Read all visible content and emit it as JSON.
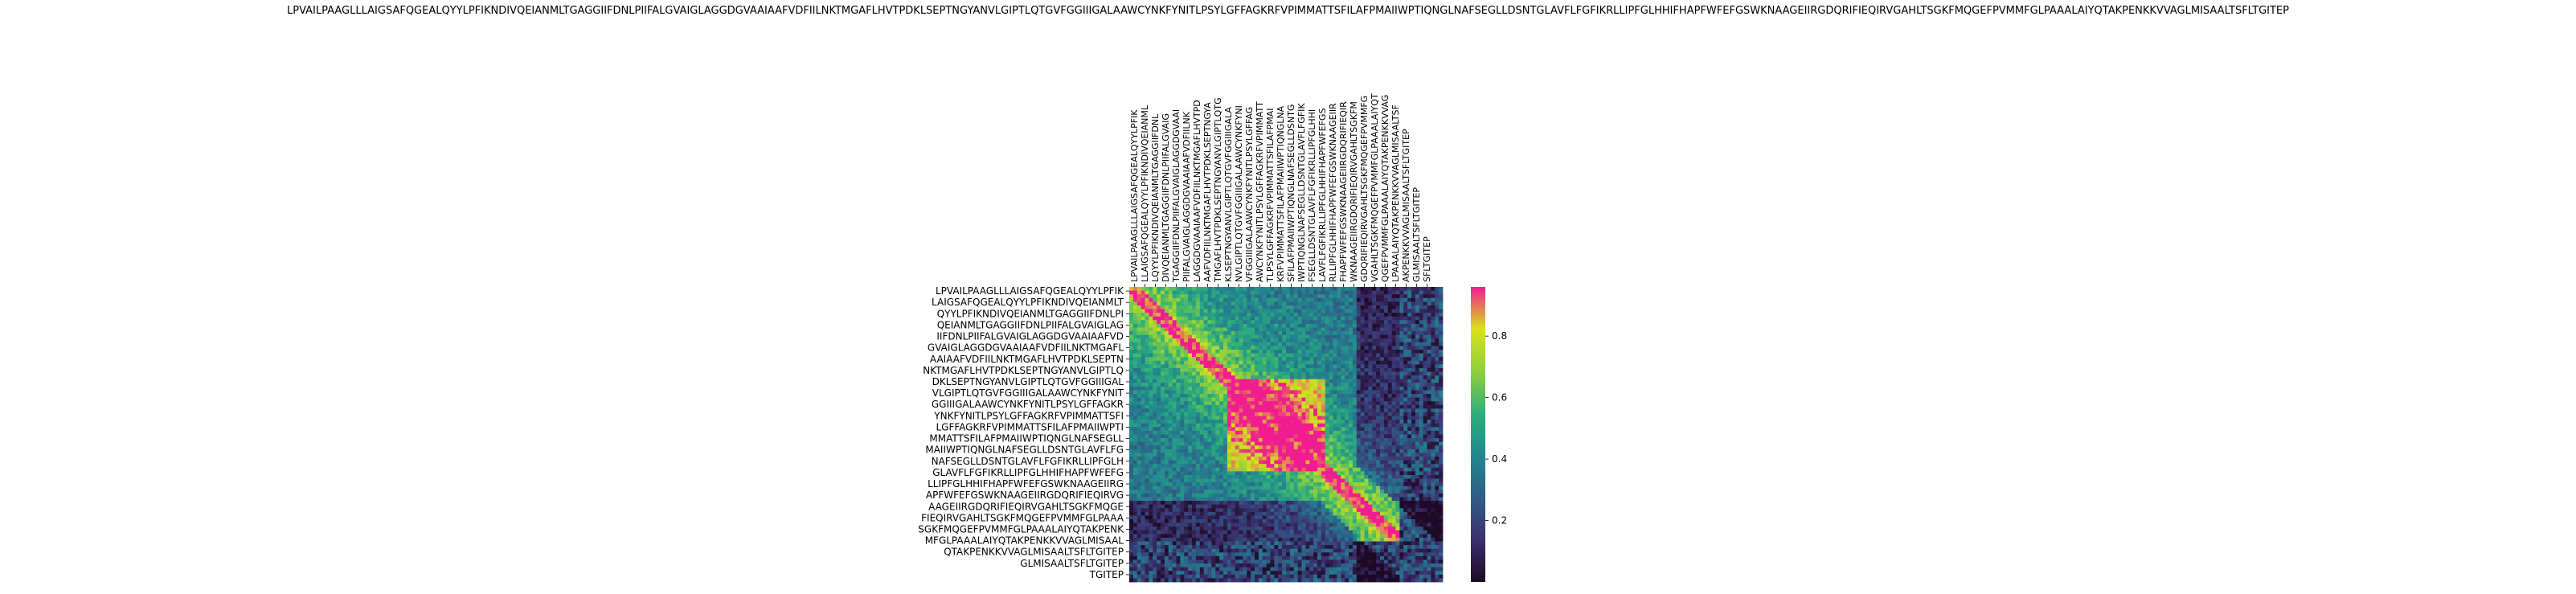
{
  "figure": {
    "title": "LPVAILPAAGLLLAIGSAFQGEALQYYLPFIKNDIVQEIANMLTGAGGIIFDNLPIIFALGVAIGLAGGDGVAAIAAFVDFIILNKTMGAFLHVTPDKLSEPTNGYANVLGIPTLQTGVFGGIIIGALAAWCYNKFYNITLPSYLGFFAGKRFVPIMMATTSFILAFPMAIIWPTIQNGLNAFSEGLLDSNTGLAVFLFGFIKRLLIPFGLHHIFHAPFWFEFGSWKNAAGEIIRGDQRIFIEQIRVGAHLTSGKFMQGEFPVMMFGLPAAALAIYQTAKPENKKVVAGLMISAALTSFLTGITEP"
  },
  "chart_data": {
    "type": "heatmap",
    "title": "LPVAILPAAGLLLAIGSAFQGEALQYYLPFIKNDIVQEIANMLTGAGGIIFDNLPIIFALGVAIGLAGGDGVAAIAAFVDFIILNKTMGAFLHVTPDKLSEPTNGYANVLGIPTLQTGVFGGIIIGALAAWCYNKFYNITLPSYLGFFAGKRFVPIMMATTSFILAFPMAIIWPTIQNGLNAFSEGLLDSNTGLAVFLFGFIKRLLIPFGLHHIFHAPFWFEFGSWKNAAGEIIRGDQRIFIEQIRVGAHLTSGKFMQGEFPVMMFGLPAAALAIYQTAKPENKKVVAGLMISAALTSFLTGITEP",
    "xlabel": "",
    "ylabel": "",
    "colorbar": {
      "ticks": [
        0.2,
        0.4,
        0.6,
        0.8
      ],
      "range": [
        0.0,
        0.96
      ],
      "colors": [
        "#1e0a26",
        "#3b2f6e",
        "#2f5e87",
        "#21878f",
        "#2faf7a",
        "#8fcf3d",
        "#d8e21e",
        "#f01c90"
      ]
    },
    "x_tick_labels": [
      "LPVAILPAAGLLLAIGSAFQGEALQYYLPFIK",
      "LLAIGSAFQGEALQYYLPFIKNDIVQEIANML",
      "LQYYLPFIKNDIVQEIANMLTGAGGIIFDNL",
      "DIVQEIANMLTGAGGIIFDNLPIIFALGVAIG",
      "TGAGGIIFDNLPIIFALGVAIGLAGGDGVAAI",
      "PIIFALGVAIGLAGGDGVAAIAAFVDFIILNK",
      "LAGGDGVAAIAAFVDFIILNKTMGAFLHVTPD",
      "AAFVDFIILNKTMGAFLHVTPDKLSEPTNGYA",
      "TMGAFLHVTPDKLSEPTNGYANVLGIPTLQTG",
      "KLSEPTNGYANVLGIPTLQTGVFGGIIIGALA",
      "NVLGIPTLQTGVFGGIIIGALAAWCYNKFYNI",
      "VFGGIIIGALAAWCYNKFYNITLPSYLGFFAG",
      "AWCYNKFYNITLPSYLGFFAGKRFVPIMMATT",
      "TLPSYLGFFAGKRFVPIMMATTSFILAFPMAI",
      "KRFVPIMMATTSFILAFPMAIIWPTIQNGLNA",
      "SFILAFPMAIIWPTIQNGLNAFSEGLLDSNTG",
      "IWPTIQNGLNAFSEGLLDSNTGLAVFLFGFIK",
      "FSEGLLDSNTGLAVFLFGFIKRLLIPFGLHHI",
      "LAVFLFGFIKRLLIPFGLHHIFHAPFWFEFGS",
      "RLLIPFGLHHIFHAPFWFEFGSWKNAAGEIIR",
      "FHAPFWFEFGSWKNAAGEIIRGDQRIFIEQIR",
      "WKNAAGEIIRGDQRIFIEQIRVGAHLTSGKFM",
      "GDQRIFIEQIRVGAHLTSGKFMQGEFPVMMFG",
      "VGAHLTSGKFMQGEFPVMMFGLPAAALAIYQT",
      "QGEFPVMMFGLPAAALAIYQTAKPENKKVVAG",
      "LPAAALAIYQTAKPENKKVVAGLMISAALTSF",
      "AKPENKKVVAGLMISAALTSFLTGITEP",
      "GLMISAALTSFLTGITEP",
      "SFLTGITEP"
    ],
    "y_tick_labels": [
      "LPVAILPAAGLLLAIGSAFQGEALQYYLPFIK",
      "LAIGSAFQGEALQYYLPFIKNDIVQEIANMLT",
      "QYYLPFIKNDIVQEIANMLTGAGGIIFDNLPI",
      "QEIANMLTGAGGIIFDNLPIIFALGVAIGLAG",
      "IIFDNLPIIFALGVAIGLAGGDGVAAIAAFVD",
      "GVAIGLAGGDGVAAIAAFVDFIILNKTMGAFL",
      "AAIAAFVDFIILNKTMGAFLHVTPDKLSEPTN",
      "NKTMGAFLHVTPDKLSEPTNGYANVLGIPTLQ",
      "DKLSEPTNGYANVLGIPTLQTGVFGGIIIGAL",
      "VLGIPTLQTGVFGGIIIGALAAWCYNKFYNIT",
      "GGIIIGALAAWCYNKFYNITLPSYLGFFAGKR",
      "YNKFYNITLPSYLGFFAGKRFVPIMMATTSFI",
      "LGFFAGKRFVPIMMATTSFILAFPMAIIWPTI",
      "MMATTSFILAFPMAIIWPTIQNGLNAFSEGLL",
      "MAIIWPTIQNGLNAFSEGLLDSNTGLAVFLFG",
      "NAFSEGLLDSNTGLAVFLFGFIKRLLIPFGLH",
      "GLAVFLFGFIKRLLIPFGLHHIFHAPFWFEFG",
      "LLIPFGLHHIFHAPFWFEFGSWKNAAGEIIRG",
      "APFWFEFGSWKNAAGEIIRGDQRIFIEQIRVG",
      "AAGEIIRGDQRIFIEQIRVGAHLTSGKFMQGE",
      "FIEQIRVGAHLTSGKFMQGEFPVMMFGLPAAA",
      "SGKFMQGEFPVMMFGLPAAALAIYQTAKPENK",
      "MFGLPAAALAIYQTAKPENKKVVAGLMISAAL",
      "QTAKPENKKVVAGLMISAALTSFLTGITEP",
      "GLMISAALTSFLTGITEP",
      "TGITEP"
    ]
  }
}
